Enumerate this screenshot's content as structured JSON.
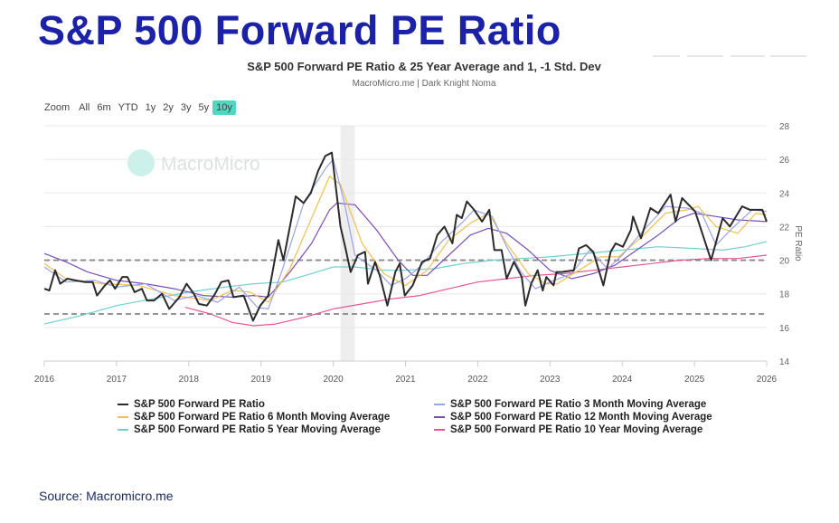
{
  "page_title": "S&P 500 Forward PE Ratio",
  "source": "Source: Macromicro.me",
  "zoom": {
    "label": "Zoom",
    "options": [
      "All",
      "6m",
      "YTD",
      "1y",
      "2y",
      "3y",
      "5y",
      "10y"
    ],
    "selected": "10y"
  },
  "watermark": "MacroMicro",
  "chart_data": {
    "type": "line",
    "title": "S&P 500 Forward PE Ratio & 25 Year Average and 1, -1 Std. Dev",
    "subtitle": "MacroMicro.me | Dark Knight Noma",
    "xlabel": "",
    "ylabel": "PE Ratio",
    "xlim": [
      2016,
      2026
    ],
    "ylim": [
      14,
      28
    ],
    "x_ticks": [
      "2016",
      "2017",
      "2018",
      "2019",
      "2020",
      "2021",
      "2022",
      "2023",
      "2024",
      "2025",
      "2026"
    ],
    "y_ticks": [
      "14",
      "16",
      "18",
      "20",
      "22",
      "24",
      "26",
      "28"
    ],
    "grid": true,
    "legend_position": "bottom",
    "reference_lines": [
      {
        "label": "25Y average",
        "value": 20.0,
        "style": "dashed",
        "color": "#888888"
      },
      {
        "label": "-1 std dev",
        "value": 16.8,
        "style": "dashed",
        "color": "#888888"
      }
    ],
    "shaded_ranges": [
      {
        "from": 2020.1,
        "to": 2020.3,
        "color": "#eeeeee"
      }
    ],
    "series": [
      {
        "name": "S&P 500 Forward PE Ratio",
        "color": "#2b2b2b",
        "x": [
          2016.0,
          2016.07,
          2016.15,
          2016.22,
          2016.32,
          2016.43,
          2016.56,
          2016.67,
          2016.73,
          2016.84,
          2016.91,
          2016.98,
          2017.08,
          2017.15,
          2017.25,
          2017.35,
          2017.42,
          2017.52,
          2017.63,
          2017.73,
          2017.87,
          2017.97,
          2018.07,
          2018.14,
          2018.25,
          2018.35,
          2018.45,
          2018.55,
          2018.62,
          2018.76,
          2018.89,
          2018.99,
          2019.1,
          2019.24,
          2019.31,
          2019.48,
          2019.59,
          2019.69,
          2019.79,
          2019.89,
          2019.98,
          2020.1,
          2020.17,
          2020.24,
          2020.34,
          2020.44,
          2020.48,
          2020.58,
          2020.65,
          2020.75,
          2020.86,
          2020.92,
          2020.99,
          2021.1,
          2021.23,
          2021.34,
          2021.44,
          2021.54,
          2021.65,
          2021.71,
          2021.78,
          2021.85,
          2021.95,
          2022.06,
          2022.16,
          2022.23,
          2022.33,
          2022.4,
          2022.5,
          2022.61,
          2022.66,
          2022.74,
          2022.83,
          2022.9,
          2022.95,
          2023.05,
          2023.09,
          2023.16,
          2023.33,
          2023.4,
          2023.5,
          2023.6,
          2023.74,
          2023.84,
          2023.91,
          2024.01,
          2024.12,
          2024.15,
          2024.26,
          2024.39,
          2024.5,
          2024.67,
          2024.74,
          2024.83,
          2025.01,
          2025.23,
          2025.39,
          2025.49,
          2025.66,
          2025.77,
          2025.94,
          2026.0
        ],
        "values": [
          18.3,
          18.2,
          19.4,
          18.6,
          18.9,
          18.8,
          18.7,
          18.7,
          17.9,
          18.5,
          18.8,
          18.3,
          19.0,
          19.0,
          18.1,
          18.3,
          17.6,
          17.6,
          18.0,
          17.1,
          17.8,
          18.6,
          18.0,
          17.4,
          17.3,
          17.9,
          18.7,
          18.8,
          17.8,
          17.9,
          16.4,
          17.3,
          17.9,
          21.2,
          20.0,
          23.8,
          23.4,
          24.0,
          25.3,
          26.2,
          26.4,
          22.0,
          20.7,
          19.3,
          20.3,
          20.5,
          18.6,
          19.9,
          19.0,
          17.3,
          19.3,
          19.8,
          17.9,
          18.5,
          19.9,
          20.1,
          21.5,
          22.0,
          21.0,
          22.7,
          22.5,
          23.5,
          23.0,
          22.3,
          23.0,
          20.6,
          20.6,
          18.9,
          19.9,
          19.0,
          17.3,
          18.6,
          19.4,
          18.2,
          19.0,
          18.5,
          19.3,
          19.3,
          19.4,
          20.7,
          20.9,
          20.5,
          18.5,
          20.5,
          21.0,
          20.8,
          21.8,
          22.6,
          21.3,
          23.1,
          22.8,
          23.9,
          22.3,
          23.7,
          22.9,
          20.0,
          22.5,
          22.0,
          23.2,
          23.0,
          23.0,
          22.3
        ]
      },
      {
        "name": "S&P 500 Forward PE Ratio 3 Month Moving Average",
        "color": "#9aa3e6",
        "x": [
          2016,
          2016.3,
          2016.7,
          2017.0,
          2017.4,
          2017.8,
          2018.1,
          2018.4,
          2018.7,
          2018.95,
          2019.1,
          2019.3,
          2019.6,
          2019.9,
          2020.0,
          2020.15,
          2020.3,
          2020.6,
          2020.8,
          2021.0,
          2021.2,
          2021.5,
          2021.8,
          2021.95,
          2022.2,
          2022.4,
          2022.6,
          2022.8,
          2023.0,
          2023.3,
          2023.55,
          2023.8,
          2024.0,
          2024.3,
          2024.6,
          2024.9,
          2025.1,
          2025.3,
          2025.5,
          2025.8,
          2026
        ],
        "values": [
          19.6,
          18.7,
          18.8,
          18.4,
          18.6,
          17.6,
          17.9,
          17.5,
          18.4,
          17.2,
          17.1,
          19.5,
          23.5,
          25.5,
          26.0,
          23.5,
          20.3,
          19.4,
          18.5,
          18.9,
          19.6,
          21.1,
          22.3,
          23.0,
          22.6,
          20.8,
          19.3,
          18.3,
          18.7,
          19.2,
          20.6,
          19.5,
          20.3,
          21.8,
          23.2,
          23.1,
          22.8,
          20.9,
          21.8,
          23.0,
          22.9
        ]
      },
      {
        "name": "S&P 500 Forward PE Ratio 6 Month Moving Average",
        "color": "#f0c050",
        "x": [
          2016,
          2016.3,
          2016.8,
          2017.3,
          2017.8,
          2018.3,
          2018.6,
          2018.85,
          2019.1,
          2019.4,
          2019.7,
          2019.95,
          2020.1,
          2020.4,
          2020.7,
          2021.0,
          2021.3,
          2021.6,
          2021.9,
          2022.15,
          2022.4,
          2022.7,
          2022.95,
          2023.1,
          2023.4,
          2023.7,
          2023.95,
          2024.3,
          2024.6,
          2024.9,
          2025.05,
          2025.3,
          2025.6,
          2025.85,
          2026
        ],
        "values": [
          19.8,
          18.9,
          18.6,
          18.5,
          17.9,
          17.6,
          18.2,
          18.1,
          17.5,
          19.5,
          22.5,
          25.0,
          24.5,
          21.0,
          19.2,
          18.5,
          19.4,
          21.2,
          22.2,
          22.8,
          21.0,
          19.2,
          18.6,
          18.6,
          19.4,
          20.2,
          20.2,
          21.5,
          22.8,
          23.0,
          23.2,
          22.0,
          21.6,
          22.8,
          22.7
        ]
      },
      {
        "name": "S&P 500 Forward PE Ratio 12 Month Moving Average",
        "color": "#7a4fb5",
        "x": [
          2016,
          2016.3,
          2016.6,
          2017.0,
          2017.4,
          2017.8,
          2018.2,
          2018.6,
          2018.9,
          2019.1,
          2019.4,
          2019.7,
          2019.95,
          2020.05,
          2020.3,
          2020.6,
          2020.9,
          2021.1,
          2021.3,
          2021.6,
          2021.9,
          2022.15,
          2022.4,
          2022.7,
          2023.0,
          2023.3,
          2023.6,
          2023.9,
          2024.2,
          2024.5,
          2024.8,
          2025.0,
          2025.3,
          2025.6,
          2026
        ],
        "values": [
          20.4,
          19.9,
          19.3,
          18.8,
          18.6,
          18.3,
          17.9,
          17.8,
          17.9,
          17.8,
          19.3,
          21.0,
          23.0,
          23.4,
          23.3,
          21.8,
          20.0,
          19.1,
          19.1,
          20.3,
          21.5,
          21.9,
          21.6,
          20.6,
          19.4,
          18.9,
          19.2,
          19.7,
          20.6,
          21.5,
          22.5,
          22.8,
          22.6,
          22.4,
          22.3
        ]
      },
      {
        "name": "S&P 500 Forward PE Ratio 5 Year Moving Average",
        "color": "#6fd0d0",
        "x": [
          2016,
          2016.5,
          2017.0,
          2017.5,
          2018.0,
          2018.5,
          2018.9,
          2019.3,
          2019.7,
          2020.0,
          2020.3,
          2020.7,
          2021.0,
          2021.4,
          2021.8,
          2022.2,
          2022.6,
          2023.0,
          2023.5,
          2024.0,
          2024.5,
          2025.0,
          2025.4,
          2025.7,
          2026
        ],
        "values": [
          16.2,
          16.7,
          17.3,
          17.7,
          18.1,
          18.4,
          18.6,
          18.7,
          19.2,
          19.6,
          19.6,
          19.4,
          19.4,
          19.5,
          19.8,
          20.0,
          20.1,
          20.2,
          20.4,
          20.6,
          20.8,
          20.7,
          20.6,
          20.8,
          21.1
        ]
      },
      {
        "name": "S&P 500 Forward PE Ratio 10 Year Moving Average",
        "color": "#e8558f",
        "x": [
          2017.95,
          2018.3,
          2018.6,
          2018.9,
          2019.2,
          2019.6,
          2020.0,
          2020.4,
          2020.8,
          2021.2,
          2021.6,
          2022.0,
          2022.4,
          2022.8,
          2023.2,
          2023.6,
          2024.0,
          2024.4,
          2024.8,
          2025.2,
          2025.6,
          2026
        ],
        "values": [
          17.2,
          16.8,
          16.3,
          16.1,
          16.2,
          16.6,
          17.1,
          17.4,
          17.7,
          17.9,
          18.3,
          18.7,
          18.9,
          19.1,
          19.2,
          19.4,
          19.6,
          19.8,
          20.0,
          20.1,
          20.1,
          20.3
        ]
      }
    ]
  }
}
